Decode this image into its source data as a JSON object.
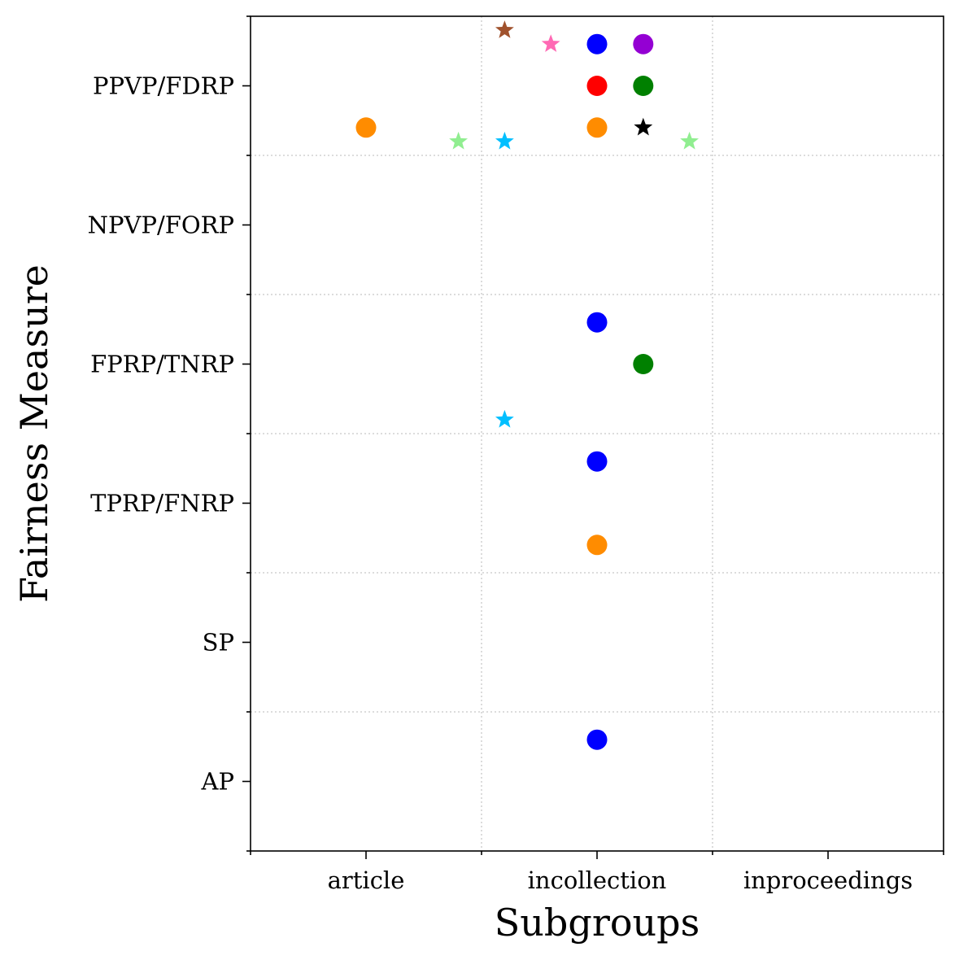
{
  "chart_data": {
    "type": "scatter",
    "title": "",
    "xlabel": "Subgroups",
    "ylabel": "Fairness Measure",
    "x_categories": [
      "article",
      "incollection",
      "inproceedings"
    ],
    "y_categories": [
      "AP",
      "SP",
      "TPRP/FNRP",
      "FPRP/TNRP",
      "NPVP/FORP",
      "PPVP/FDRP"
    ],
    "xlim": [
      -0.5,
      2.5
    ],
    "ylim": [
      -0.5,
      5.5
    ],
    "grid": "minor gridlines between categories, dotted",
    "legend": "none",
    "points": [
      {
        "x": 0.6,
        "y": 5.4,
        "marker": "star",
        "color": "#a0522d"
      },
      {
        "x": 0.8,
        "y": 5.3,
        "marker": "star",
        "color": "#ff69b4"
      },
      {
        "x": 1.0,
        "y": 5.3,
        "marker": "circle",
        "color": "#0000ff"
      },
      {
        "x": 1.2,
        "y": 5.3,
        "marker": "circle",
        "color": "#9400d3"
      },
      {
        "x": 1.0,
        "y": 5.0,
        "marker": "circle",
        "color": "#ff0000"
      },
      {
        "x": 1.2,
        "y": 5.0,
        "marker": "circle",
        "color": "#008000"
      },
      {
        "x": 0.0,
        "y": 4.7,
        "marker": "circle",
        "color": "#ff8c00"
      },
      {
        "x": 1.0,
        "y": 4.7,
        "marker": "circle",
        "color": "#ff8c00"
      },
      {
        "x": 1.2,
        "y": 4.7,
        "marker": "star",
        "color": "#000000"
      },
      {
        "x": 0.4,
        "y": 4.6,
        "marker": "star",
        "color": "#90ee90"
      },
      {
        "x": 0.6,
        "y": 4.6,
        "marker": "star",
        "color": "#00bfff"
      },
      {
        "x": 1.4,
        "y": 4.6,
        "marker": "star",
        "color": "#90ee90"
      },
      {
        "x": 1.0,
        "y": 3.3,
        "marker": "circle",
        "color": "#0000ff"
      },
      {
        "x": 1.2,
        "y": 3.0,
        "marker": "circle",
        "color": "#008000"
      },
      {
        "x": 0.6,
        "y": 2.6,
        "marker": "star",
        "color": "#00bfff"
      },
      {
        "x": 1.0,
        "y": 2.3,
        "marker": "circle",
        "color": "#0000ff"
      },
      {
        "x": 1.0,
        "y": 1.7,
        "marker": "circle",
        "color": "#ff8c00"
      },
      {
        "x": 1.0,
        "y": 0.3,
        "marker": "circle",
        "color": "#0000ff"
      }
    ]
  }
}
